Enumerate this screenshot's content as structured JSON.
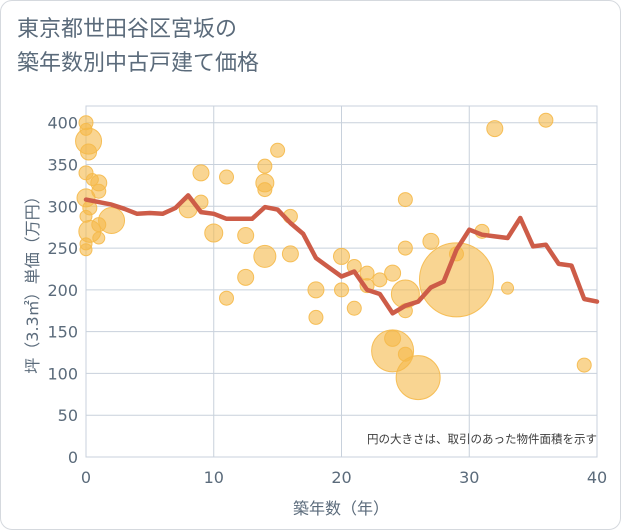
{
  "chart_data": {
    "type": "scatter",
    "title": [
      "東京都世田谷区宮坂の",
      "築年数別中古戸建て価格"
    ],
    "xlabel": "築年数（年）",
    "ylabel": "坪（3.3㎡）単価（万円）",
    "xlim": [
      0,
      40
    ],
    "ylim": [
      0,
      420
    ],
    "xticks": [
      "0",
      "10",
      "20",
      "30",
      "40"
    ],
    "yticks": [
      "0",
      "50",
      "100",
      "150",
      "200",
      "250",
      "300",
      "350",
      "400"
    ],
    "grid": true,
    "note": "円の大きさは、取引のあった物件面積を示す",
    "colors": {
      "bubble": "#f5b94a",
      "line": "#cd5c48",
      "grid": "#c8d1dc"
    },
    "bubbles": [
      {
        "x": 0,
        "y": 400,
        "s": 7
      },
      {
        "x": 0,
        "y": 392,
        "s": 6
      },
      {
        "x": 0.2,
        "y": 378,
        "s": 13
      },
      {
        "x": 0.2,
        "y": 365,
        "s": 8
      },
      {
        "x": 0,
        "y": 340,
        "s": 7
      },
      {
        "x": 0.5,
        "y": 332,
        "s": 6
      },
      {
        "x": 1,
        "y": 328,
        "s": 8
      },
      {
        "x": 1,
        "y": 318,
        "s": 7
      },
      {
        "x": 0,
        "y": 310,
        "s": 9
      },
      {
        "x": 0.3,
        "y": 298,
        "s": 7
      },
      {
        "x": 0,
        "y": 288,
        "s": 6
      },
      {
        "x": 1,
        "y": 278,
        "s": 7
      },
      {
        "x": 0.3,
        "y": 270,
        "s": 11
      },
      {
        "x": 1,
        "y": 262,
        "s": 6
      },
      {
        "x": 0,
        "y": 255,
        "s": 6
      },
      {
        "x": 0,
        "y": 248,
        "s": 6
      },
      {
        "x": 2,
        "y": 283,
        "s": 13
      },
      {
        "x": 8,
        "y": 297,
        "s": 9
      },
      {
        "x": 9,
        "y": 340,
        "s": 8
      },
      {
        "x": 9,
        "y": 305,
        "s": 7
      },
      {
        "x": 10,
        "y": 268,
        "s": 9
      },
      {
        "x": 11,
        "y": 335,
        "s": 7
      },
      {
        "x": 11,
        "y": 190,
        "s": 7
      },
      {
        "x": 12.5,
        "y": 265,
        "s": 8
      },
      {
        "x": 12.5,
        "y": 215,
        "s": 8
      },
      {
        "x": 14,
        "y": 348,
        "s": 7
      },
      {
        "x": 14,
        "y": 328,
        "s": 9
      },
      {
        "x": 14,
        "y": 320,
        "s": 7
      },
      {
        "x": 14,
        "y": 240,
        "s": 11
      },
      {
        "x": 15,
        "y": 367,
        "s": 7
      },
      {
        "x": 16,
        "y": 288,
        "s": 7
      },
      {
        "x": 16,
        "y": 243,
        "s": 8
      },
      {
        "x": 18,
        "y": 200,
        "s": 8
      },
      {
        "x": 18,
        "y": 167,
        "s": 7
      },
      {
        "x": 20,
        "y": 240,
        "s": 8
      },
      {
        "x": 20,
        "y": 200,
        "s": 7
      },
      {
        "x": 21,
        "y": 228,
        "s": 7
      },
      {
        "x": 21,
        "y": 178,
        "s": 7
      },
      {
        "x": 22,
        "y": 220,
        "s": 7
      },
      {
        "x": 22,
        "y": 205,
        "s": 7
      },
      {
        "x": 23,
        "y": 212,
        "s": 7
      },
      {
        "x": 24,
        "y": 220,
        "s": 8
      },
      {
        "x": 24,
        "y": 142,
        "s": 8
      },
      {
        "x": 24,
        "y": 127,
        "s": 21
      },
      {
        "x": 25,
        "y": 308,
        "s": 7
      },
      {
        "x": 25,
        "y": 250,
        "s": 7
      },
      {
        "x": 25,
        "y": 195,
        "s": 14
      },
      {
        "x": 25,
        "y": 175,
        "s": 7
      },
      {
        "x": 25,
        "y": 123,
        "s": 7
      },
      {
        "x": 26,
        "y": 95,
        "s": 22
      },
      {
        "x": 27,
        "y": 258,
        "s": 8
      },
      {
        "x": 29,
        "y": 212,
        "s": 37
      },
      {
        "x": 29,
        "y": 243,
        "s": 7
      },
      {
        "x": 31,
        "y": 270,
        "s": 7
      },
      {
        "x": 32,
        "y": 393,
        "s": 8
      },
      {
        "x": 33,
        "y": 202,
        "s": 6
      },
      {
        "x": 36,
        "y": 403,
        "s": 7
      },
      {
        "x": 39,
        "y": 110,
        "s": 7
      }
    ],
    "line": [
      {
        "x": 0,
        "y": 308
      },
      {
        "x": 1,
        "y": 305
      },
      {
        "x": 2,
        "y": 302
      },
      {
        "x": 3,
        "y": 297
      },
      {
        "x": 4,
        "y": 291
      },
      {
        "x": 5,
        "y": 292
      },
      {
        "x": 6,
        "y": 291
      },
      {
        "x": 7,
        "y": 298
      },
      {
        "x": 8,
        "y": 313
      },
      {
        "x": 9,
        "y": 293
      },
      {
        "x": 10,
        "y": 291
      },
      {
        "x": 11,
        "y": 285
      },
      {
        "x": 12,
        "y": 285
      },
      {
        "x": 13,
        "y": 285
      },
      {
        "x": 14,
        "y": 299
      },
      {
        "x": 15,
        "y": 296
      },
      {
        "x": 16,
        "y": 280
      },
      {
        "x": 17,
        "y": 267
      },
      {
        "x": 18,
        "y": 238
      },
      {
        "x": 19,
        "y": 227
      },
      {
        "x": 20,
        "y": 216
      },
      {
        "x": 21,
        "y": 222
      },
      {
        "x": 22,
        "y": 200
      },
      {
        "x": 23,
        "y": 195
      },
      {
        "x": 24,
        "y": 172
      },
      {
        "x": 25,
        "y": 181
      },
      {
        "x": 26,
        "y": 186
      },
      {
        "x": 27,
        "y": 203
      },
      {
        "x": 28,
        "y": 210
      },
      {
        "x": 29,
        "y": 248
      },
      {
        "x": 30,
        "y": 272
      },
      {
        "x": 31,
        "y": 266
      },
      {
        "x": 32,
        "y": 264
      },
      {
        "x": 33,
        "y": 262
      },
      {
        "x": 34,
        "y": 286
      },
      {
        "x": 35,
        "y": 252
      },
      {
        "x": 36,
        "y": 254
      },
      {
        "x": 37,
        "y": 231
      },
      {
        "x": 38,
        "y": 229
      },
      {
        "x": 39,
        "y": 189
      },
      {
        "x": 40,
        "y": 186
      }
    ]
  }
}
